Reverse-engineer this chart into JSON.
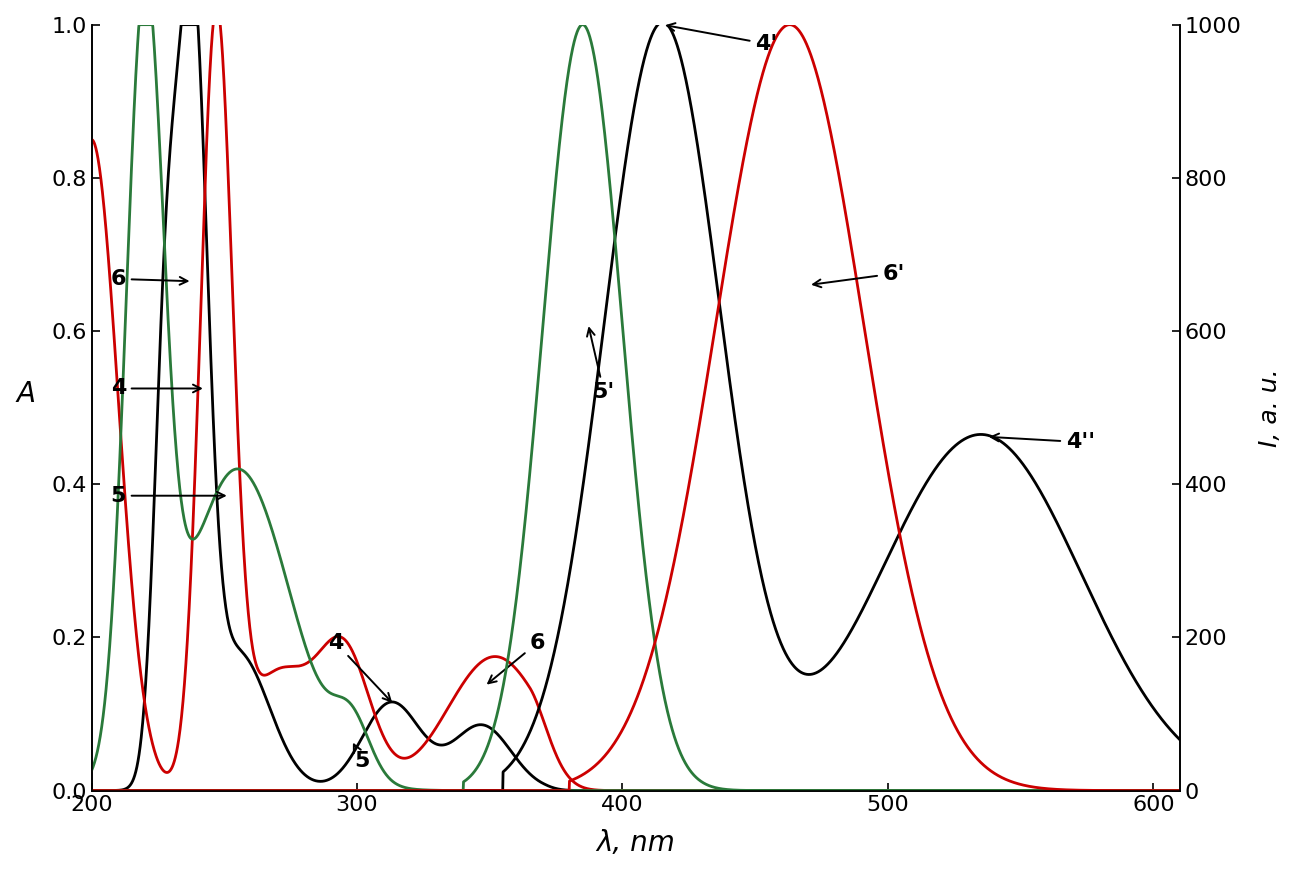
{
  "xlim": [
    200,
    610
  ],
  "ylim_left": [
    0.0,
    1.0
  ],
  "ylim_right": [
    0,
    1000
  ],
  "xlabel": "λ, nm",
  "ylabel_left": "A",
  "ylabel_right": "I, a. u.",
  "colors": {
    "black": "#000000",
    "red": "#cc0000",
    "green": "#2a7a3a"
  }
}
